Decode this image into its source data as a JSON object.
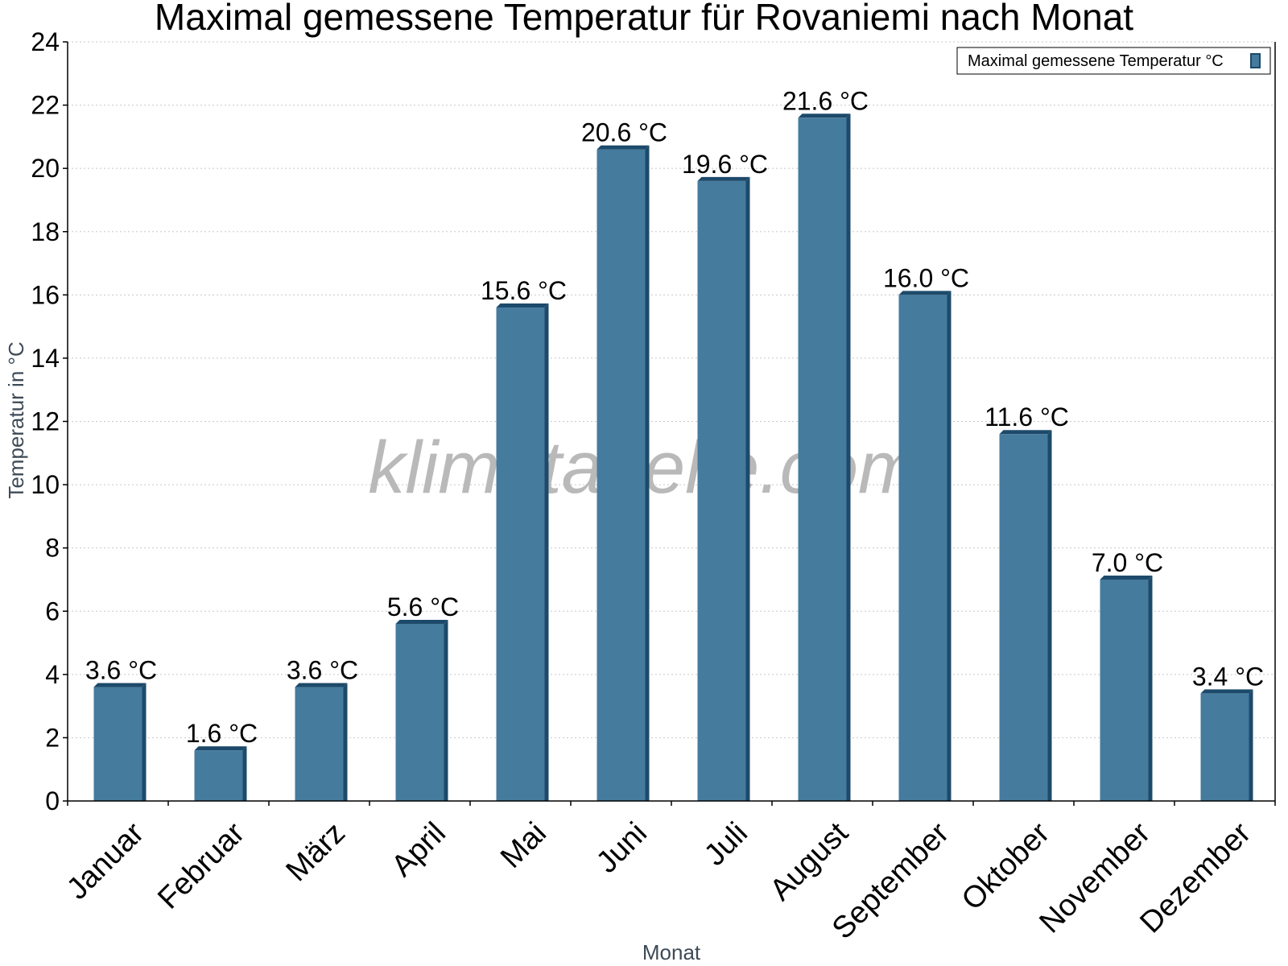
{
  "chart_data": {
    "type": "bar",
    "title": "Maximal gemessene Temperatur für Rovaniemi nach Monat",
    "xlabel": "Monat",
    "ylabel": "Temperatur in °C",
    "categories": [
      "Januar",
      "Februar",
      "März",
      "April",
      "Mai",
      "Juni",
      "Juli",
      "August",
      "September",
      "Oktober",
      "November",
      "Dezember"
    ],
    "series": [
      {
        "name": "Maximal gemessene Temperatur °C",
        "values": [
          3.6,
          1.6,
          3.6,
          5.6,
          15.6,
          20.6,
          19.6,
          21.6,
          16.0,
          11.6,
          7.0,
          3.4
        ],
        "labels": [
          "3.6 °C",
          "1.6 °C",
          "3.6 °C",
          "5.6 °C",
          "15.6 °C",
          "20.6 °C",
          "19.6 °C",
          "21.6 °C",
          "16.0 °C",
          "11.6 °C",
          "7.0 °C",
          "3.4 °C"
        ]
      }
    ],
    "ylim": [
      0,
      24
    ],
    "yticks": [
      0,
      2,
      4,
      6,
      8,
      10,
      12,
      14,
      16,
      18,
      20,
      22,
      24
    ],
    "grid": true,
    "legend_position": "top-right",
    "bar_color": "#457b9d",
    "bar_edge_color": "#1d4a6a"
  },
  "watermark": "klimatabelle.com"
}
